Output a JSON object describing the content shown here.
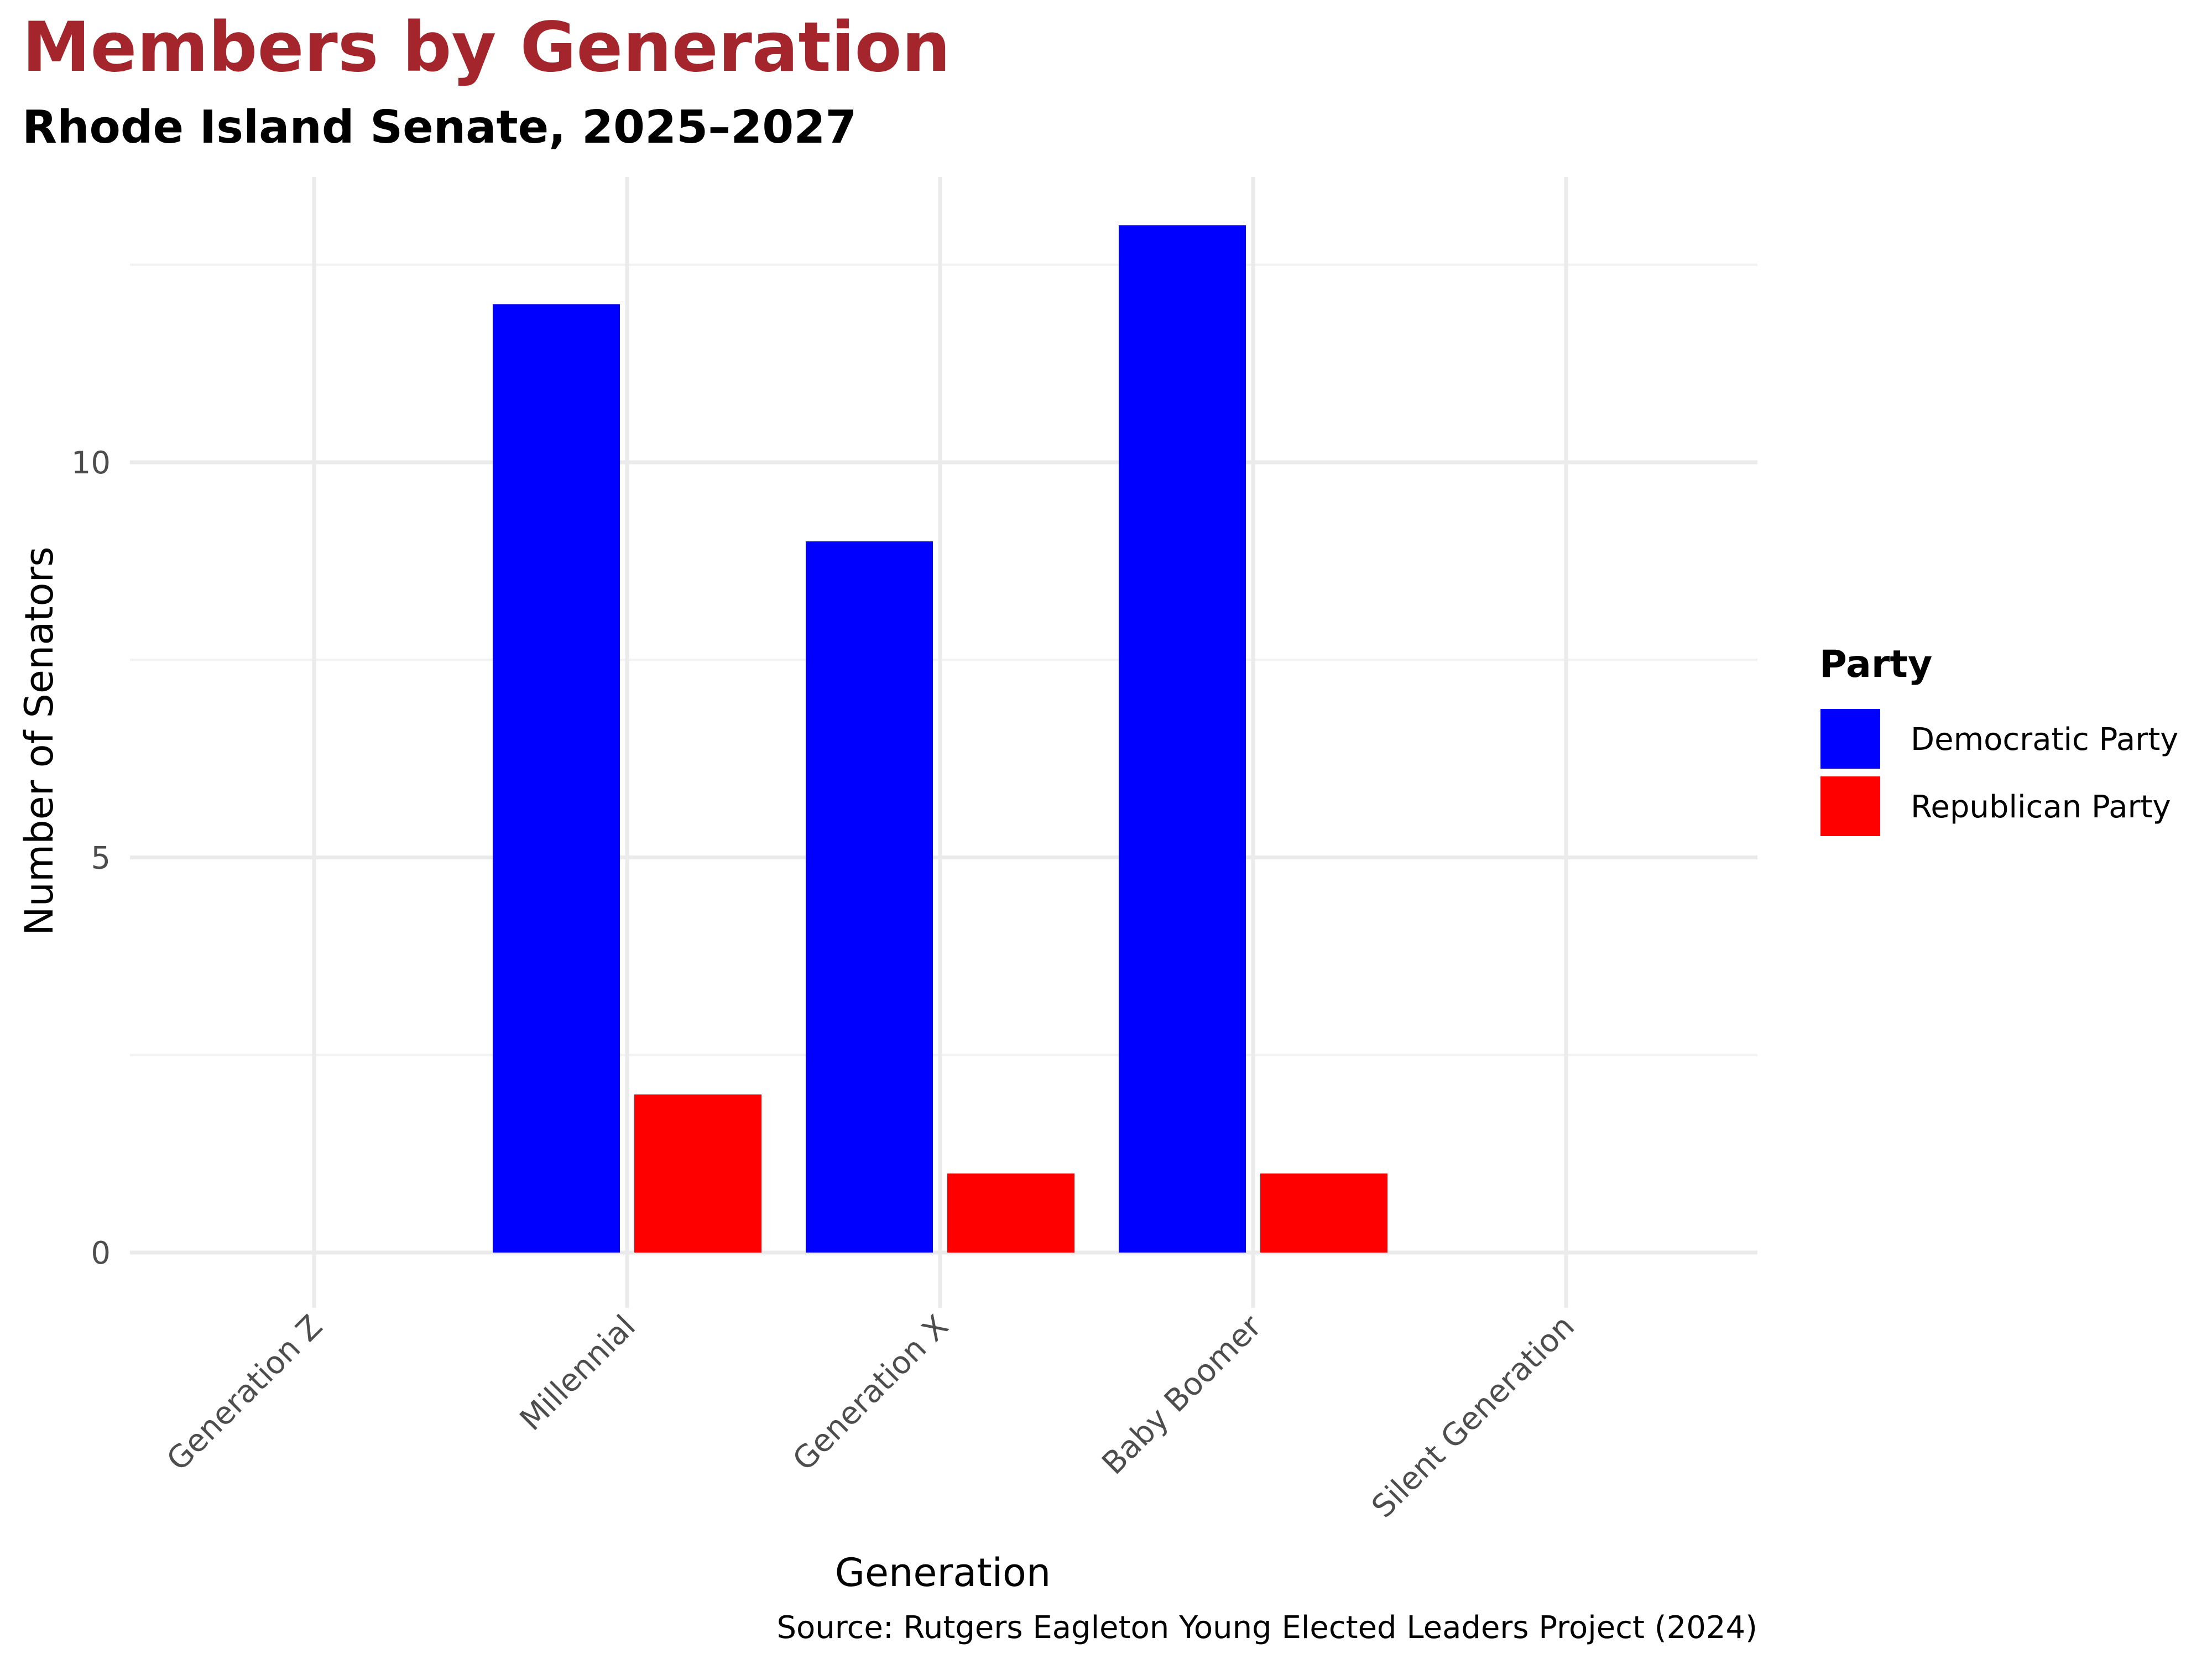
{
  "colors": {
    "title": "#a4262c",
    "grid_major": "#ebebeb",
    "grid_minor": "#f2f2f2",
    "democratic": "#0000ff",
    "republican": "#ff0000"
  },
  "chart_data": {
    "type": "bar",
    "title": "Members by Generation",
    "subtitle": "Rhode Island Senate, 2025–2027",
    "xlabel": "Generation",
    "ylabel": "Number of Senators",
    "categories": [
      "Generation Z",
      "Millennial",
      "Generation X",
      "Baby Boomer",
      "Silent Generation"
    ],
    "series": [
      {
        "name": "Democratic Party",
        "color": "#0000ff",
        "values": [
          0,
          12,
          9,
          13,
          0
        ]
      },
      {
        "name": "Republican Party",
        "color": "#ff0000",
        "values": [
          0,
          2,
          1,
          1,
          0
        ]
      }
    ],
    "y_ticks": [
      0,
      5,
      10
    ],
    "ylim": [
      0,
      13
    ],
    "grid": true,
    "legend": {
      "title": "Party",
      "position": "right"
    },
    "caption": "Source: Rutgers Eagleton Young Elected Leaders Project (2024)"
  }
}
